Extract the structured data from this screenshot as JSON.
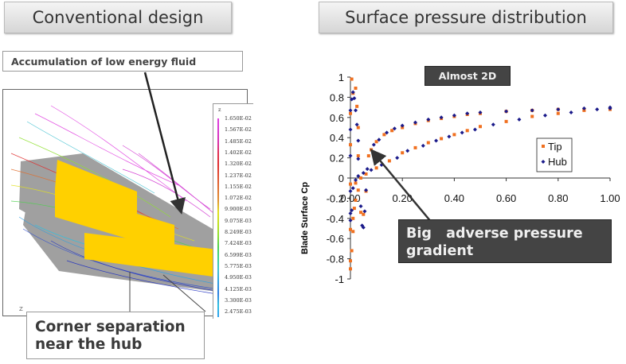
{
  "left": {
    "title": "Conventional design",
    "callout_top": "Accumulation of low energy fluid",
    "callout_bottom_line1": "Corner separation",
    "callout_bottom_line2": "near the hub",
    "axis_marker": "Z",
    "colorbar": {
      "title": "z",
      "labels": [
        "1.650E-02",
        "1.567E-02",
        "1.485E-02",
        "1.402E-02",
        "1.320E-02",
        "1.237E-02",
        "1.155E-02",
        "1.072E-02",
        "9.900E-03",
        "9.075E-03",
        "8.249E-03",
        "7.424E-03",
        "6.599E-03",
        "5.775E-03",
        "4.950E-03",
        "4.125E-03",
        "3.300E-03",
        "2.475E-03"
      ],
      "colors": [
        "#e040e0",
        "#d838d0",
        "#d830b0",
        "#e03050",
        "#e03030",
        "#e05030",
        "#e07030",
        "#e09030",
        "#e0e020",
        "#c0e020",
        "#90e030",
        "#50d050",
        "#40d090",
        "#40c0d0",
        "#30a0e0",
        "#3080e0",
        "#30c0e0",
        "#30a0f0"
      ]
    },
    "colors": {
      "blade": "#ffd000",
      "hub_surface": "#a0a0a0"
    }
  },
  "right": {
    "title": "Surface pressure distribution",
    "label_almost_2d": "Almost 2D",
    "callout_line1": "Big   adverse pressure",
    "callout_line2": "gradient"
  },
  "chart_data": {
    "type": "scatter",
    "ylabel": "Blade Surface Cp",
    "xlabel": "",
    "xlim": [
      0,
      1
    ],
    "ylim": [
      -1,
      1
    ],
    "x_ticks": [
      "0.00",
      "0.20",
      "0.40",
      "0.60",
      "0.80",
      "1.00"
    ],
    "y_ticks": [
      "1",
      "0.8",
      "0.6",
      "0.4",
      "0.2",
      "0",
      "-0.2",
      "-0.4",
      "-0.6",
      "-0.8",
      "-1"
    ],
    "grid": false,
    "legend_placement": "right",
    "series": [
      {
        "name": "Tip",
        "color": "#f07020",
        "marker": "square",
        "points": [
          [
            0.0,
            0.33
          ],
          [
            0.0,
            0.64
          ],
          [
            0.005,
            0.98
          ],
          [
            0.01,
            0.84
          ],
          [
            0.02,
            0.89
          ],
          [
            0.025,
            0.71
          ],
          [
            0.03,
            0.5
          ],
          [
            0.03,
            0.22
          ],
          [
            0.0,
            -0.06
          ],
          [
            0.0,
            -0.51
          ],
          [
            0.01,
            -0.53
          ],
          [
            0.005,
            -0.72
          ],
          [
            0.0,
            -0.82
          ],
          [
            0.0,
            -0.9
          ],
          [
            0.01,
            -0.4
          ],
          [
            0.015,
            -0.3
          ],
          [
            0.02,
            -0.22
          ],
          [
            0.03,
            -0.12
          ],
          [
            0.04,
            -0.34
          ],
          [
            0.05,
            -0.36
          ],
          [
            0.06,
            -0.13
          ],
          [
            0.07,
            0.22
          ],
          [
            0.08,
            0.28
          ],
          [
            0.1,
            0.36
          ],
          [
            0.13,
            0.43
          ],
          [
            0.16,
            0.47
          ],
          [
            0.2,
            0.5
          ],
          [
            0.25,
            0.54
          ],
          [
            0.3,
            0.57
          ],
          [
            0.35,
            0.59
          ],
          [
            0.4,
            0.61
          ],
          [
            0.45,
            0.63
          ],
          [
            0.5,
            0.64
          ],
          [
            0.6,
            0.66
          ],
          [
            0.7,
            0.67
          ],
          [
            0.8,
            0.68
          ],
          [
            0.9,
            0.68
          ],
          [
            1.0,
            0.69
          ],
          [
            0.02,
            -0.05
          ],
          [
            0.04,
            0.0
          ],
          [
            0.06,
            0.04
          ],
          [
            0.1,
            0.1
          ],
          [
            0.15,
            0.17
          ],
          [
            0.2,
            0.25
          ],
          [
            0.25,
            0.3
          ],
          [
            0.3,
            0.35
          ],
          [
            0.35,
            0.39
          ],
          [
            0.4,
            0.43
          ],
          [
            0.45,
            0.47
          ],
          [
            0.5,
            0.51
          ],
          [
            0.6,
            0.56
          ],
          [
            0.7,
            0.61
          ],
          [
            0.8,
            0.64
          ],
          [
            0.9,
            0.67
          ],
          [
            1.0,
            0.68
          ]
        ]
      },
      {
        "name": "Hub",
        "color": "#1a1a8a",
        "marker": "diamond",
        "points": [
          [
            0.0,
            0.22
          ],
          [
            0.0,
            0.48
          ],
          [
            0.0,
            0.67
          ],
          [
            0.005,
            0.78
          ],
          [
            0.01,
            0.85
          ],
          [
            0.015,
            0.79
          ],
          [
            0.02,
            0.67
          ],
          [
            0.025,
            0.53
          ],
          [
            0.03,
            0.37
          ],
          [
            0.03,
            0.19
          ],
          [
            0.0,
            -0.13
          ],
          [
            0.0,
            -0.35
          ],
          [
            0.0,
            -0.42
          ],
          [
            0.005,
            -0.32
          ],
          [
            0.04,
            -0.28
          ],
          [
            0.045,
            -0.47
          ],
          [
            0.05,
            -0.49
          ],
          [
            0.055,
            -0.33
          ],
          [
            0.06,
            -0.12
          ],
          [
            0.065,
            0.09
          ],
          [
            0.09,
            0.33
          ],
          [
            0.11,
            0.38
          ],
          [
            0.14,
            0.45
          ],
          [
            0.17,
            0.49
          ],
          [
            0.2,
            0.52
          ],
          [
            0.25,
            0.55
          ],
          [
            0.3,
            0.58
          ],
          [
            0.35,
            0.6
          ],
          [
            0.4,
            0.62
          ],
          [
            0.45,
            0.64
          ],
          [
            0.5,
            0.65
          ],
          [
            0.6,
            0.66
          ],
          [
            0.7,
            0.67
          ],
          [
            0.8,
            0.68
          ],
          [
            0.9,
            0.69
          ],
          [
            1.0,
            0.7
          ],
          [
            0.01,
            -0.1
          ],
          [
            0.02,
            -0.02
          ],
          [
            0.03,
            0.02
          ],
          [
            0.05,
            0.05
          ],
          [
            0.08,
            0.08
          ],
          [
            0.12,
            0.13
          ],
          [
            0.18,
            0.2
          ],
          [
            0.22,
            0.27
          ],
          [
            0.28,
            0.32
          ],
          [
            0.33,
            0.37
          ],
          [
            0.38,
            0.41
          ],
          [
            0.43,
            0.45
          ],
          [
            0.48,
            0.48
          ],
          [
            0.55,
            0.53
          ],
          [
            0.65,
            0.58
          ],
          [
            0.75,
            0.62
          ],
          [
            0.85,
            0.65
          ],
          [
            0.95,
            0.68
          ],
          [
            1.0,
            0.69
          ]
        ]
      }
    ]
  }
}
